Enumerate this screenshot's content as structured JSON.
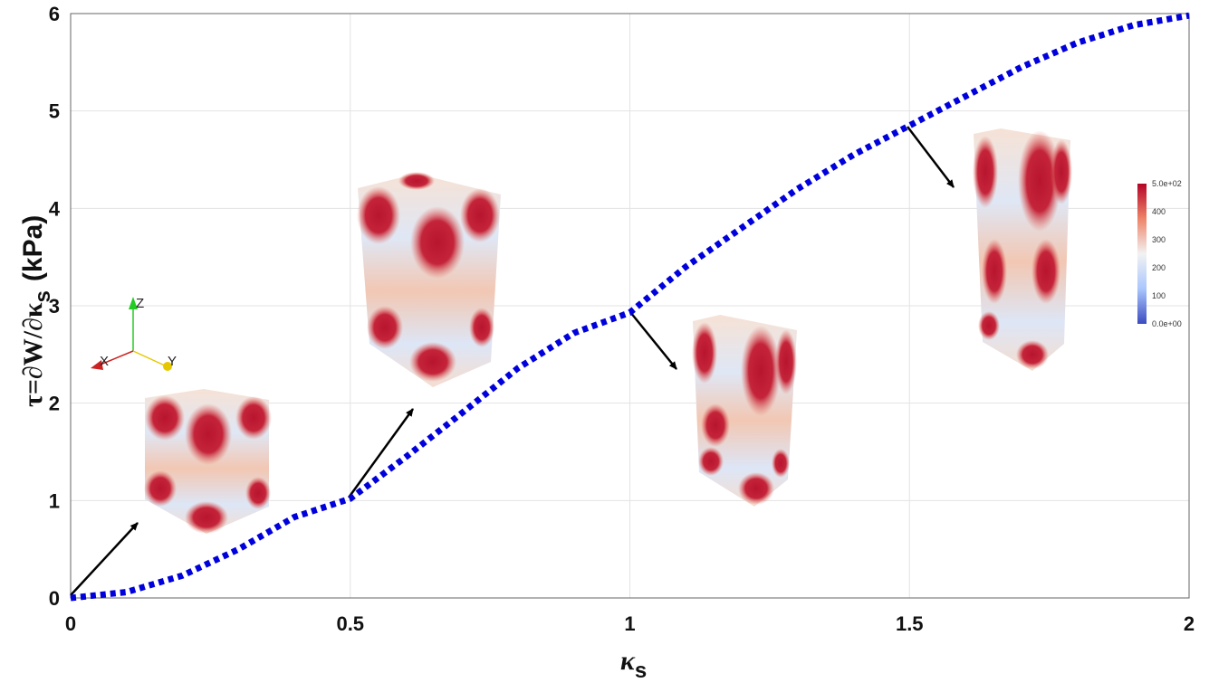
{
  "chart_data": {
    "type": "line",
    "xlabel": "κ",
    "xlabel_sub": "s",
    "ylabel": "τ=∂W/∂κ",
    "ylabel_sub": "s",
    "ylabel_unit": "(kPa)",
    "xlim": [
      0,
      2
    ],
    "ylim": [
      0,
      6
    ],
    "xticks": [
      "0",
      "0.5",
      "1",
      "1.5",
      "2"
    ],
    "yticks": [
      "0",
      "1",
      "2",
      "3",
      "4",
      "5",
      "6"
    ],
    "grid": true,
    "series": [
      {
        "color": "#0000dd",
        "style": "dotted",
        "x": [
          0,
          0.1,
          0.2,
          0.3,
          0.4,
          0.5,
          0.6,
          0.7,
          0.8,
          0.9,
          1.0,
          1.1,
          1.2,
          1.3,
          1.4,
          1.5,
          1.6,
          1.7,
          1.8,
          1.9,
          2.0
        ],
        "y": [
          0,
          0.06,
          0.23,
          0.5,
          0.83,
          1.02,
          1.45,
          1.9,
          2.36,
          2.72,
          2.93,
          3.4,
          3.8,
          4.2,
          4.55,
          4.85,
          5.15,
          5.45,
          5.7,
          5.88,
          5.98
        ]
      }
    ],
    "insets": [
      {
        "name": "inset-cube-0",
        "anchor": [
          0.0,
          0.0
        ]
      },
      {
        "name": "inset-prism-05",
        "anchor": [
          0.5,
          1.0
        ]
      },
      {
        "name": "inset-prism-1",
        "anchor": [
          1.0,
          2.95
        ]
      },
      {
        "name": "inset-prism-15",
        "anchor": [
          1.5,
          4.85
        ]
      }
    ],
    "colorbar": {
      "labels": [
        "5.0e+02",
        "400",
        "300",
        "200",
        "100",
        "0.0e+00"
      ],
      "colors": [
        "#b40426",
        "#ee8468",
        "#f2f2f2",
        "#aac7fd",
        "#3b4cc0"
      ]
    },
    "triad": {
      "labels": [
        "Z",
        "X",
        "Y"
      ],
      "colors": [
        "#22cc22",
        "#cc2222",
        "#e6c800"
      ]
    }
  }
}
